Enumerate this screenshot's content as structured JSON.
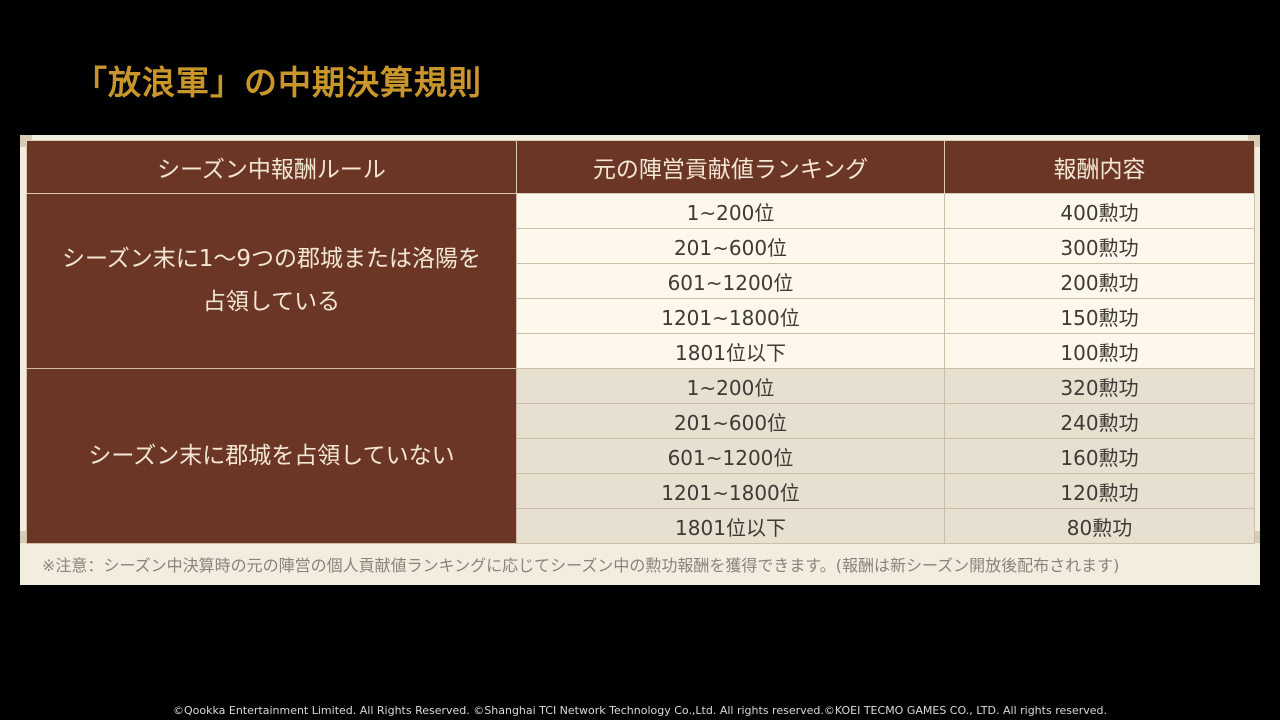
{
  "title": "「放浪軍」の中期決算規則",
  "table": {
    "headers": [
      "シーズン中報酬ルール",
      "元の陣営貢献値ランキング",
      "報酬内容"
    ],
    "groups": [
      {
        "rule_line1": "シーズン末に1～9つの郡城または洛陽を",
        "rule_line2": "占領している",
        "rows": [
          {
            "rank": "1~200位",
            "reward": "400勲功"
          },
          {
            "rank": "201~600位",
            "reward": "300勲功"
          },
          {
            "rank": "601~1200位",
            "reward": "200勲功"
          },
          {
            "rank": "1201~1800位",
            "reward": "150勲功"
          },
          {
            "rank": "1801位以下",
            "reward": "100勲功"
          }
        ]
      },
      {
        "rule_line1": "シーズン末に郡城を占領していない",
        "rows": [
          {
            "rank": "1~200位",
            "reward": "320勲功"
          },
          {
            "rank": "201~600位",
            "reward": "240勲功"
          },
          {
            "rank": "601~1200位",
            "reward": "160勲功"
          },
          {
            "rank": "1201~1800位",
            "reward": "120勲功"
          },
          {
            "rank": "1801位以下",
            "reward": "80勲功"
          }
        ]
      }
    ]
  },
  "note": "※注意：シーズン中決算時の元の陣営の個人貢献値ランキングに応じてシーズン中の勲功報酬を獲得できます。(報酬は新シーズン開放後配布されます)",
  "copyright": "©Qookka Entertainment Limited. All Rights Reserved. ©Shanghai TCI Network Technology Co.,Ltd. All rights reserved.©KOEI TECMO GAMES CO., LTD. All rights reserved.",
  "colors": {
    "title": "#c8962a",
    "header_bg": "#6b3626",
    "row_light": "#fdf8eb",
    "row_dark": "#e7dfd0",
    "background": "#000000"
  }
}
